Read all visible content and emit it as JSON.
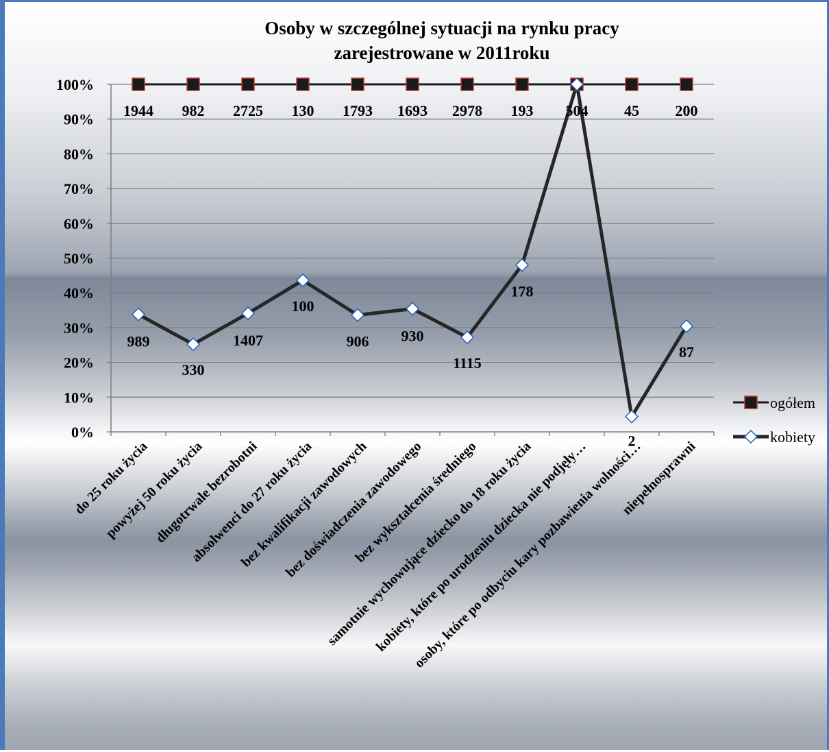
{
  "chart_data": {
    "type": "line",
    "title_lines": [
      "Osoby w szczególnej sytuacji na rynku pracy",
      "zarejestrowane w 2011roku"
    ],
    "ylim": [
      0,
      100
    ],
    "yticks": [
      "0%",
      "10%",
      "20%",
      "30%",
      "40%",
      "50%",
      "60%",
      "70%",
      "80%",
      "90%",
      "100%"
    ],
    "grid": true,
    "legend_position": "right",
    "categories": [
      "do 25 roku życia",
      "powyżej 50 roku życia",
      "długotrwale bezrobotni",
      "absolwenci do 27 roku życia",
      "bez kwalifikacji zawodowych",
      "bez doświadczenia zawodowego",
      "bez wykształcenia średniego",
      "samotnie wychowujące dziecko do 18 roku życia",
      "kobiety, które po urodzeniu dziecka nie podjęły…",
      "osoby, które po odbyciu kary pozbawienia wolności…",
      "niepełnosprawni"
    ],
    "series": [
      {
        "name": "ogółem",
        "color": "#1a1a1a",
        "marker": "square",
        "marker_fill": "#1a1a1a",
        "marker_stroke": "#c0392b",
        "values_percent": [
          100,
          100,
          100,
          100,
          100,
          100,
          100,
          100,
          100,
          100,
          100
        ],
        "labels": [
          "1944",
          "982",
          "2725",
          "130",
          "1793",
          "1693",
          "2978",
          "193",
          "504",
          "45",
          "200"
        ]
      },
      {
        "name": "kobiety",
        "color": "#262626",
        "marker": "diamond",
        "marker_fill": "#ffffff",
        "marker_stroke": "#1f5fbf",
        "values_percent": [
          33.8,
          25.2,
          34.1,
          43.6,
          33.6,
          35.4,
          27.2,
          48.0,
          100,
          4.4,
          30.4
        ],
        "labels": [
          "989",
          "330",
          "1407",
          "100",
          "906",
          "930",
          "1115",
          "178",
          "",
          "2",
          "87"
        ]
      }
    ]
  }
}
